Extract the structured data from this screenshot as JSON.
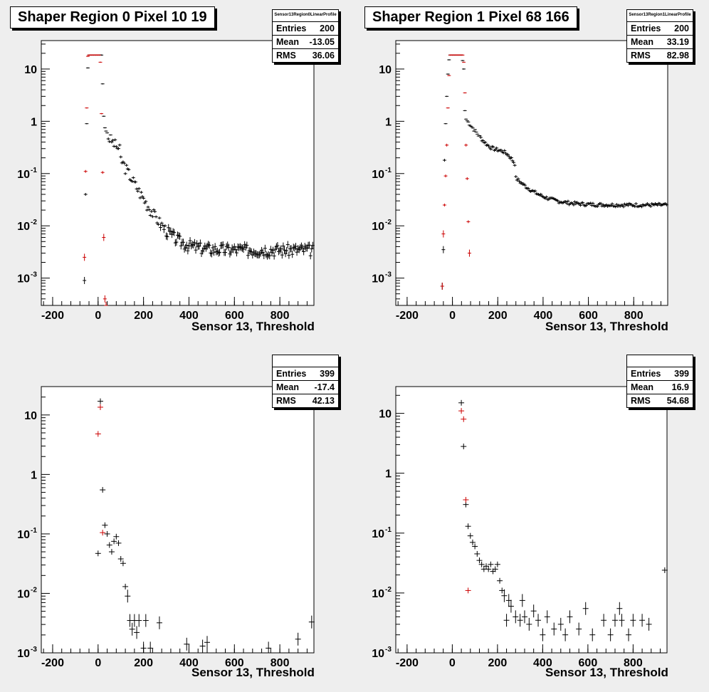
{
  "colors": {
    "background": "#eeeeee",
    "frame": "#ffffff",
    "black_series": "#000000",
    "red_series": "#cc0000"
  },
  "pads": [
    {
      "title": "Shaper Region 0 Pixel 10 19",
      "stats": {
        "name": "Sensor13Region0LinearProfile",
        "entries_label": "Entries",
        "entries": "200",
        "mean_label": "Mean",
        "mean": "-13.05",
        "rms_label": "RMS",
        "rms": "36.06"
      },
      "xlabel": "Sensor 13, Threshold"
    },
    {
      "title": "Shaper Region 1 Pixel 68 166",
      "stats": {
        "name": "Sensor13Region1LinearProfile",
        "entries_label": "Entries",
        "entries": "200",
        "mean_label": "Mean",
        "mean": "33.19",
        "rms_label": "RMS",
        "rms": "82.98"
      },
      "xlabel": "Sensor 13, Threshold"
    },
    {
      "title": "",
      "stats": {
        "name": "",
        "entries_label": "Entries",
        "entries": "399",
        "mean_label": "Mean",
        "mean": "-17.4",
        "rms_label": "RMS",
        "rms": "42.13"
      },
      "xlabel": "Sensor 13, Threshold"
    },
    {
      "title": "",
      "stats": {
        "name": "",
        "entries_label": "Entries",
        "entries": "399",
        "mean_label": "Mean",
        "mean": "16.9",
        "rms_label": "RMS",
        "rms": "54.68"
      },
      "xlabel": "Sensor 13, Threshold"
    }
  ],
  "chart_data": [
    {
      "type": "scatter",
      "title": "Shaper Region 0 Pixel 10 19",
      "xlabel": "Sensor 13, Threshold",
      "ylabel": "",
      "xlim": [
        -250,
        950
      ],
      "ylim": [
        0.0003,
        35
      ],
      "yscale": "log",
      "xticks": [
        -200,
        0,
        200,
        400,
        600,
        800
      ],
      "yticks": [
        0.001,
        0.01,
        0.1,
        1,
        10
      ],
      "ytick_labels": [
        [
          "10",
          "-3"
        ],
        [
          "10",
          "-2"
        ],
        [
          "10",
          "-1"
        ],
        [
          "1",
          ""
        ],
        [
          "10",
          ""
        ]
      ],
      "grid": false,
      "series": [
        {
          "color": "black",
          "x": [
            -60,
            -55,
            -50,
            -45,
            -40,
            -35,
            -30,
            -25,
            -20,
            -15,
            -10,
            -5,
            0,
            5,
            10,
            15,
            20,
            25,
            30,
            35,
            40
          ],
          "y": [
            0.0009,
            0.04,
            0.9,
            10.5,
            18.5,
            18.5,
            18.5,
            18.5,
            18.5,
            18.5,
            18.5,
            18.5,
            18.5,
            18.5,
            18.5,
            18.5,
            5.2,
            1.25,
            0.75,
            0.65,
            0.6
          ],
          "generated_tail": {
            "x_start": 45,
            "x_end": 945,
            "step": 5,
            "model": "decay",
            "a": 0.5,
            "b": 0.03,
            "c": 0.0035,
            "knee": 100,
            "scale": 55,
            "noise": 0.25,
            "seed": 3
          }
        },
        {
          "color": "red",
          "x": [
            -60,
            -55,
            -50,
            -45,
            -40,
            -35,
            -30,
            -25,
            -20,
            -15,
            -10,
            -5,
            0,
            5,
            10,
            15,
            20,
            25,
            30,
            35
          ],
          "y": [
            0.0025,
            0.11,
            1.8,
            17.5,
            18.5,
            18.5,
            18.5,
            18.5,
            18.5,
            18.5,
            18.5,
            18.5,
            18.5,
            18.5,
            13.5,
            1.4,
            0.105,
            0.006,
            0.0004,
            0.0003
          ]
        }
      ]
    },
    {
      "type": "scatter",
      "title": "Shaper Region 1 Pixel 68 166",
      "xlabel": "Sensor 13, Threshold",
      "ylabel": "",
      "xlim": [
        -250,
        950
      ],
      "ylim": [
        0.0003,
        35
      ],
      "yscale": "log",
      "xticks": [
        -200,
        0,
        200,
        400,
        600,
        800
      ],
      "yticks": [
        0.001,
        0.01,
        0.1,
        1,
        10
      ],
      "ytick_labels": [
        [
          "10",
          "-3"
        ],
        [
          "10",
          "-2"
        ],
        [
          "10",
          "-1"
        ],
        [
          "1",
          ""
        ],
        [
          "10",
          ""
        ]
      ],
      "grid": false,
      "series": [
        {
          "color": "black",
          "x": [
            -45,
            -40,
            -35,
            -30,
            -25,
            -20,
            -15,
            -10,
            -5,
            0,
            5,
            10,
            15,
            20,
            25,
            30,
            35,
            40,
            45,
            50,
            55,
            60
          ],
          "y": [
            0.0007,
            0.0035,
            0.18,
            0.9,
            3.0,
            8.0,
            15.0,
            18.5,
            18.5,
            18.5,
            18.5,
            18.5,
            18.5,
            18.5,
            18.5,
            18.5,
            18.5,
            18.5,
            14.5,
            10.0,
            1.6,
            1.1
          ],
          "generated_tail": {
            "x_start": 65,
            "x_end": 945,
            "step": 5,
            "model": "decay2",
            "a": 1.0,
            "c": 0.025,
            "knee": 280,
            "scale": 75,
            "noise": 0.08,
            "seed": 7
          }
        },
        {
          "color": "red",
          "x": [
            -45,
            -40,
            -35,
            -30,
            -25,
            -20,
            -15,
            -10,
            -5,
            0,
            5,
            10,
            15,
            20,
            25,
            30,
            35,
            40,
            45,
            50,
            55,
            60,
            65,
            70,
            75
          ],
          "y": [
            0.0007,
            0.007,
            0.025,
            0.09,
            0.35,
            1.8,
            7.5,
            18.5,
            18.5,
            18.5,
            18.5,
            18.5,
            18.5,
            18.5,
            18.5,
            18.5,
            18.5,
            18.5,
            18.5,
            13.5,
            3.5,
            0.35,
            0.08,
            0.012,
            0.003
          ]
        }
      ]
    },
    {
      "type": "scatter",
      "title": "",
      "xlabel": "Sensor 13, Threshold",
      "ylabel": "",
      "xlim": [
        -250,
        950
      ],
      "ylim": [
        0.001,
        30
      ],
      "yscale": "log",
      "xticks": [
        -200,
        0,
        200,
        400,
        600,
        800
      ],
      "yticks": [
        0.001,
        0.01,
        0.1,
        1,
        10
      ],
      "ytick_labels": [
        [
          "10",
          "-3"
        ],
        [
          "10",
          "-2"
        ],
        [
          "10",
          "-1"
        ],
        [
          "1",
          ""
        ],
        [
          "10",
          ""
        ]
      ],
      "grid": false,
      "series": [
        {
          "color": "black",
          "x": [
            0,
            10,
            20,
            30,
            40,
            50,
            60,
            70,
            80,
            90,
            100,
            110,
            120,
            130,
            140,
            150,
            160,
            170,
            180,
            200,
            210,
            230,
            270,
            390,
            460,
            480,
            750,
            880,
            940
          ],
          "y": [
            0.047,
            17,
            0.55,
            0.14,
            0.1,
            0.065,
            0.05,
            0.075,
            0.09,
            0.07,
            0.038,
            0.032,
            0.013,
            0.009,
            0.0035,
            0.0025,
            0.0035,
            0.0022,
            0.0035,
            0.0012,
            0.0035,
            0.0012,
            0.0032,
            0.0014,
            0.0013,
            0.0015,
            0.0012,
            0.0017,
            0.0033
          ]
        },
        {
          "color": "red",
          "x": [
            0,
            10,
            20
          ],
          "y": [
            4.8,
            13.5,
            0.105
          ]
        }
      ]
    },
    {
      "type": "scatter",
      "title": "",
      "xlabel": "Sensor 13, Threshold",
      "ylabel": "",
      "xlim": [
        -250,
        950
      ],
      "ylim": [
        0.001,
        28
      ],
      "yscale": "log",
      "xticks": [
        -200,
        0,
        200,
        400,
        600,
        800
      ],
      "yticks": [
        0.001,
        0.01,
        0.1,
        1,
        10
      ],
      "ytick_labels": [
        [
          "10",
          "-3"
        ],
        [
          "10",
          "-2"
        ],
        [
          "10",
          "-1"
        ],
        [
          "1",
          ""
        ],
        [
          "10",
          ""
        ]
      ],
      "grid": false,
      "series": [
        {
          "color": "black",
          "x": [
            40,
            50,
            60,
            70,
            80,
            90,
            100,
            110,
            120,
            130,
            140,
            150,
            160,
            170,
            180,
            190,
            200,
            210,
            220,
            230,
            240,
            250,
            260,
            280,
            300,
            310,
            320,
            340,
            360,
            380,
            400,
            420,
            450,
            480,
            500,
            520,
            560,
            590,
            620,
            670,
            700,
            720,
            740,
            750,
            780,
            800,
            840,
            870,
            940
          ],
          "y": [
            15,
            2.8,
            0.3,
            0.13,
            0.09,
            0.07,
            0.06,
            0.045,
            0.035,
            0.03,
            0.025,
            0.028,
            0.025,
            0.03,
            0.023,
            0.025,
            0.03,
            0.016,
            0.011,
            0.009,
            0.0035,
            0.0075,
            0.006,
            0.004,
            0.0035,
            0.0075,
            0.004,
            0.003,
            0.005,
            0.0035,
            0.002,
            0.004,
            0.0025,
            0.003,
            0.002,
            0.004,
            0.0025,
            0.0055,
            0.002,
            0.0035,
            0.002,
            0.0035,
            0.0055,
            0.0035,
            0.002,
            0.0035,
            0.0035,
            0.003,
            0.024
          ]
        },
        {
          "color": "red",
          "x": [
            40,
            50,
            60,
            70
          ],
          "y": [
            11,
            8,
            0.36,
            0.011
          ]
        }
      ]
    }
  ]
}
